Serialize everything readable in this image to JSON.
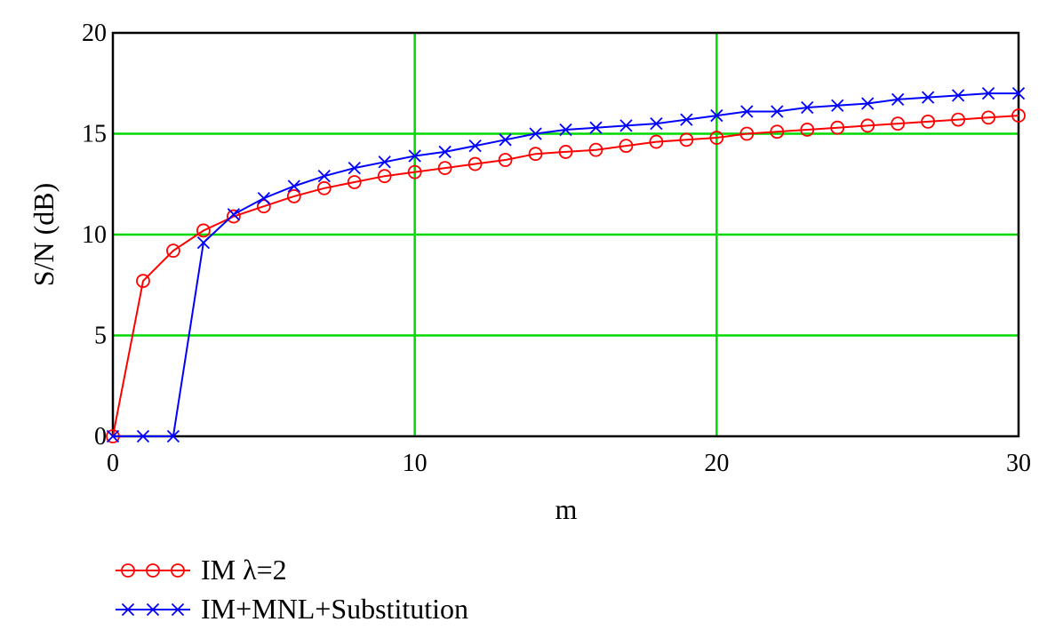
{
  "chart_data": {
    "type": "line",
    "title": "",
    "xlabel": "m",
    "ylabel": "S/N (dB)",
    "xlim": [
      0,
      30
    ],
    "ylim": [
      0,
      20
    ],
    "x_ticks": [
      "0",
      "10",
      "20",
      "30"
    ],
    "y_ticks": [
      "0",
      "5",
      "10",
      "15",
      "20"
    ],
    "grid": true,
    "legend_position": "bottom-left",
    "series": [
      {
        "name": "IM λ=2",
        "color": "#ff0000",
        "marker": "circle",
        "x": [
          0,
          1,
          2,
          3,
          4,
          5,
          6,
          7,
          8,
          9,
          10,
          11,
          12,
          13,
          14,
          15,
          16,
          17,
          18,
          19,
          20,
          21,
          22,
          23,
          24,
          25,
          26,
          27,
          28,
          29,
          30
        ],
        "y": [
          0,
          7.7,
          9.2,
          10.2,
          10.9,
          11.4,
          11.9,
          12.3,
          12.6,
          12.9,
          13.1,
          13.3,
          13.5,
          13.7,
          14.0,
          14.1,
          14.2,
          14.4,
          14.6,
          14.7,
          14.8,
          15.0,
          15.1,
          15.2,
          15.3,
          15.4,
          15.5,
          15.6,
          15.7,
          15.8,
          15.9
        ]
      },
      {
        "name": "IM+MNL+Substitution",
        "color": "#0000ff",
        "marker": "x",
        "x": [
          0,
          1,
          2,
          3,
          4,
          5,
          6,
          7,
          8,
          9,
          10,
          11,
          12,
          13,
          14,
          15,
          16,
          17,
          18,
          19,
          20,
          21,
          22,
          23,
          24,
          25,
          26,
          27,
          28,
          29,
          30
        ],
        "y": [
          0,
          0,
          0,
          9.6,
          11.0,
          11.8,
          12.4,
          12.9,
          13.3,
          13.6,
          13.9,
          14.1,
          14.4,
          14.7,
          15.0,
          15.2,
          15.3,
          15.4,
          15.5,
          15.7,
          15.9,
          16.1,
          16.1,
          16.3,
          16.4,
          16.5,
          16.7,
          16.8,
          16.9,
          17.0,
          17.0
        ]
      }
    ]
  }
}
